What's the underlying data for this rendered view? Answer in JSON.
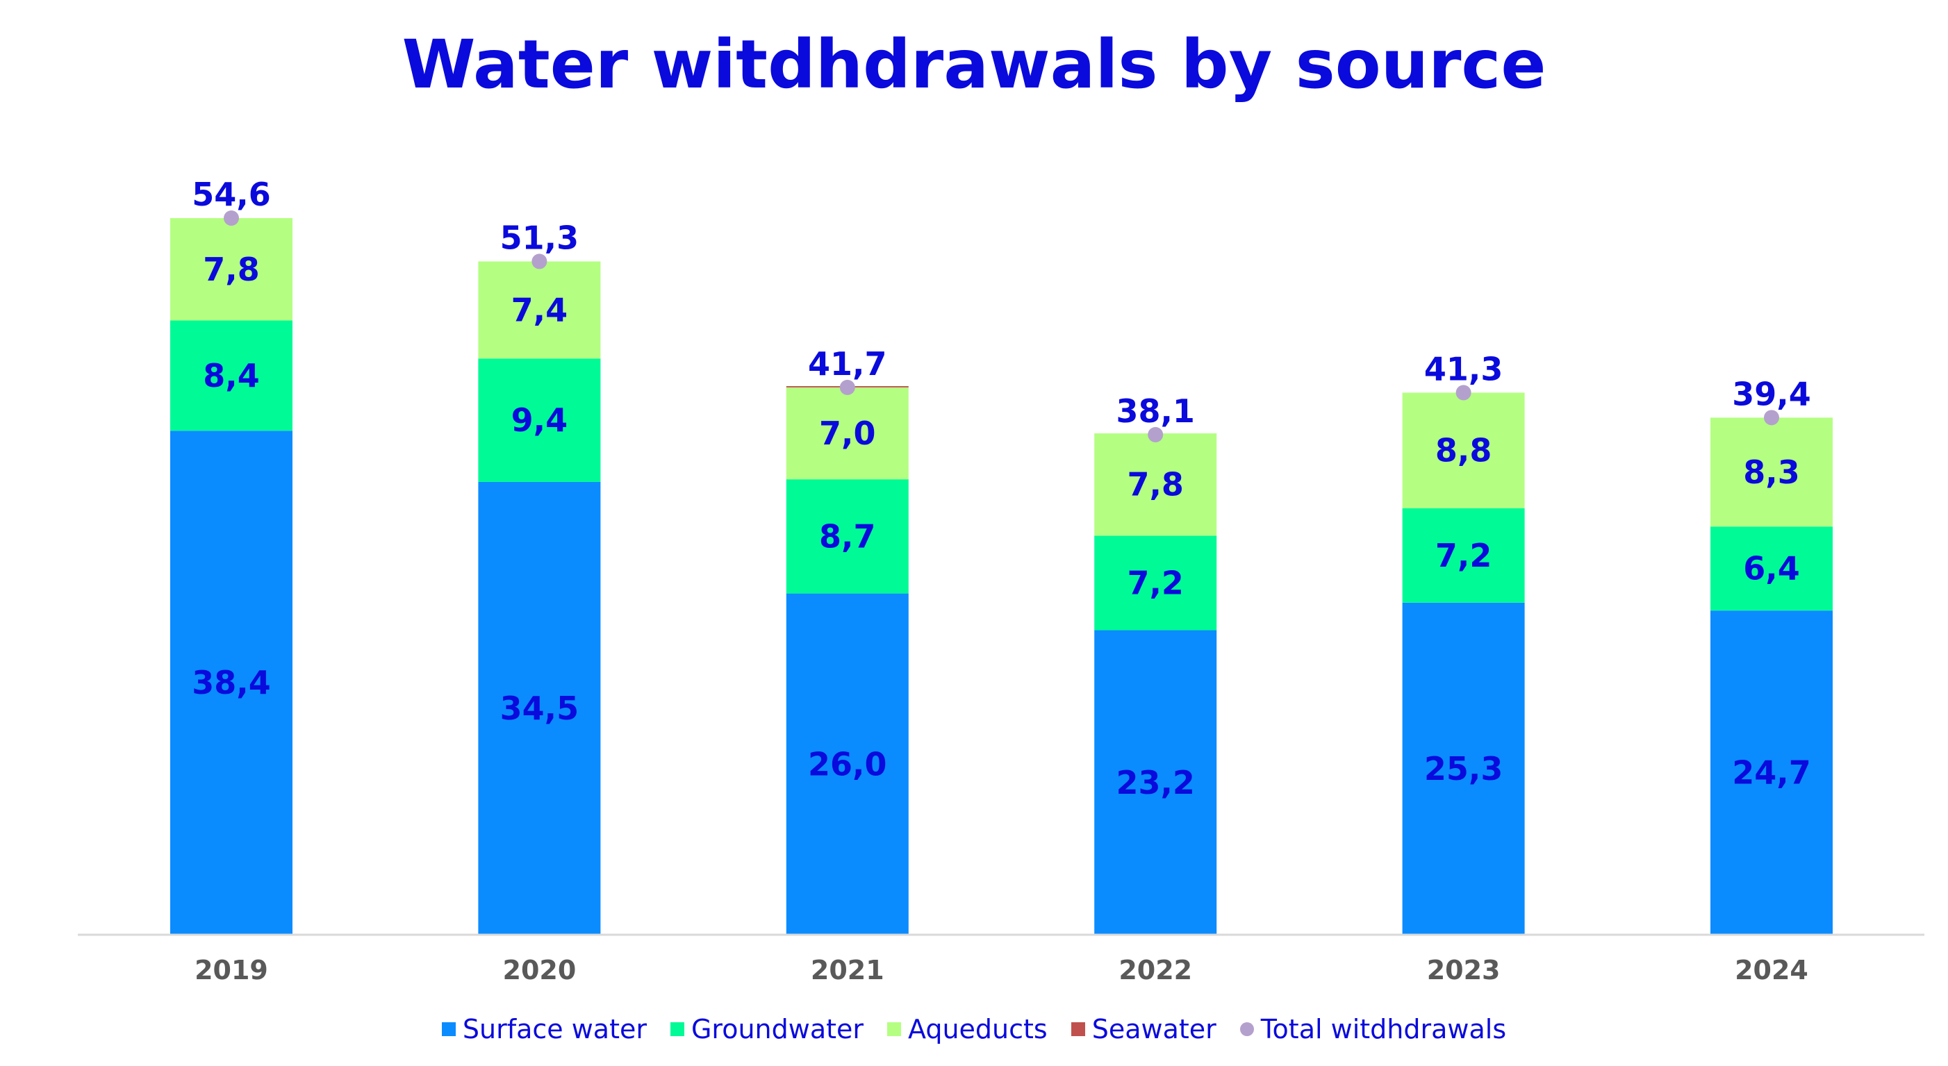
{
  "chart_data": {
    "type": "bar",
    "stacked": true,
    "title": "Water witdhdrawals by source",
    "xlabel": "",
    "ylabel": "",
    "ylim": [
      0,
      56
    ],
    "grid": false,
    "legend_position": "bottom",
    "categories": [
      "2019",
      "2020",
      "2021",
      "2022",
      "2023",
      "2024"
    ],
    "series": [
      {
        "name": "Surface water",
        "color": "#0A8CFF",
        "values": [
          38.4,
          34.5,
          26.0,
          23.2,
          25.3,
          24.7
        ],
        "labels": [
          "38,4",
          "34,5",
          "26,0",
          "23,2",
          "25,3",
          "24,7"
        ]
      },
      {
        "name": "Groundwater",
        "color": "#00FA96",
        "values": [
          8.4,
          9.4,
          8.7,
          7.2,
          7.2,
          6.4
        ],
        "labels": [
          "8,4",
          "9,4",
          "8,7",
          "7,2",
          "7,2",
          "6,4"
        ]
      },
      {
        "name": "Aqueducts",
        "color": "#B4FF82",
        "values": [
          7.8,
          7.4,
          7.0,
          7.8,
          8.8,
          8.3
        ],
        "labels": [
          "7,8",
          "7,4",
          "7,0",
          "7,8",
          "8,8",
          "8,3"
        ]
      },
      {
        "name": "Seawater",
        "color": "#C0504D",
        "values": [
          0.0,
          0.0,
          0.1,
          0.0,
          0.0,
          0.0
        ],
        "labels": [
          "",
          "",
          "",
          "",
          "",
          ""
        ]
      }
    ],
    "total": {
      "name": "Total witdhdrawals",
      "color": "#B4A0CD",
      "values": [
        54.6,
        51.3,
        41.7,
        38.1,
        41.3,
        39.4
      ],
      "labels": [
        "54,6",
        "51,3",
        "41,7",
        "38,1",
        "41,3",
        "39,4"
      ]
    },
    "colors": {
      "label_text": "#0A0ADC",
      "axis_text": "#595959",
      "axis_line": "#D9D9D9"
    }
  }
}
